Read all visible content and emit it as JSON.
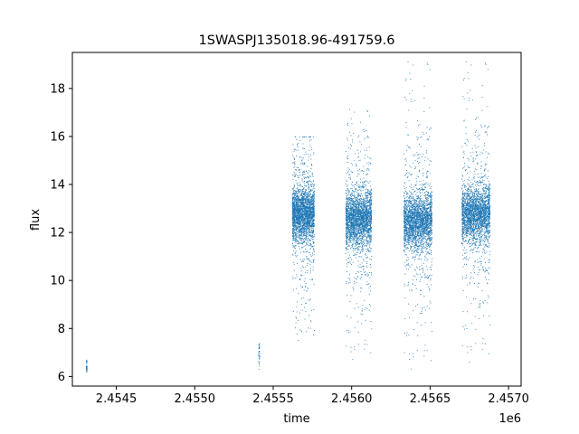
{
  "chart_data": {
    "type": "scatter",
    "title": "1SWASPJ135018.96-491759.6",
    "xlabel": "time",
    "ylabel": "flux",
    "x_offset_label": "1e6",
    "xlim": [
      2454220,
      2457080
    ],
    "ylim": [
      5.6,
      19.5
    ],
    "x_ticks": [
      2454500,
      2455000,
      2455500,
      2456000,
      2456500,
      2457000
    ],
    "x_tick_labels": [
      "2.4545",
      "2.4550",
      "2.4555",
      "2.4560",
      "2.4565",
      "2.4570"
    ],
    "y_ticks": [
      6,
      8,
      10,
      12,
      14,
      16,
      18
    ],
    "y_tick_labels": [
      "6",
      "8",
      "10",
      "12",
      "14",
      "16",
      "18"
    ],
    "grid": false,
    "legend": "none",
    "point_color": "#1f77b4",
    "observing_seasons": [
      {
        "x_start": 2454305,
        "x_end": 2454312,
        "flux_median": 6.5,
        "flux_min": 6.2,
        "flux_max": 6.7,
        "density": "sparse"
      },
      {
        "x_start": 2455405,
        "x_end": 2455412,
        "flux_median": 6.7,
        "flux_min": 6.3,
        "flux_max": 7.4,
        "density": "sparse"
      },
      {
        "x_start": 2455620,
        "x_end": 2455760,
        "flux_median": 12.8,
        "flux_min": 7.5,
        "flux_max": 16.0,
        "density": "dense"
      },
      {
        "x_start": 2455960,
        "x_end": 2456125,
        "flux_median": 12.6,
        "flux_min": 6.7,
        "flux_max": 17.2,
        "density": "dense"
      },
      {
        "x_start": 2456330,
        "x_end": 2456510,
        "flux_median": 12.5,
        "flux_min": 6.3,
        "flux_max": 19.2,
        "density": "dense"
      },
      {
        "x_start": 2456700,
        "x_end": 2456880,
        "flux_median": 12.8,
        "flux_min": 6.6,
        "flux_max": 19.2,
        "density": "dense"
      }
    ]
  }
}
